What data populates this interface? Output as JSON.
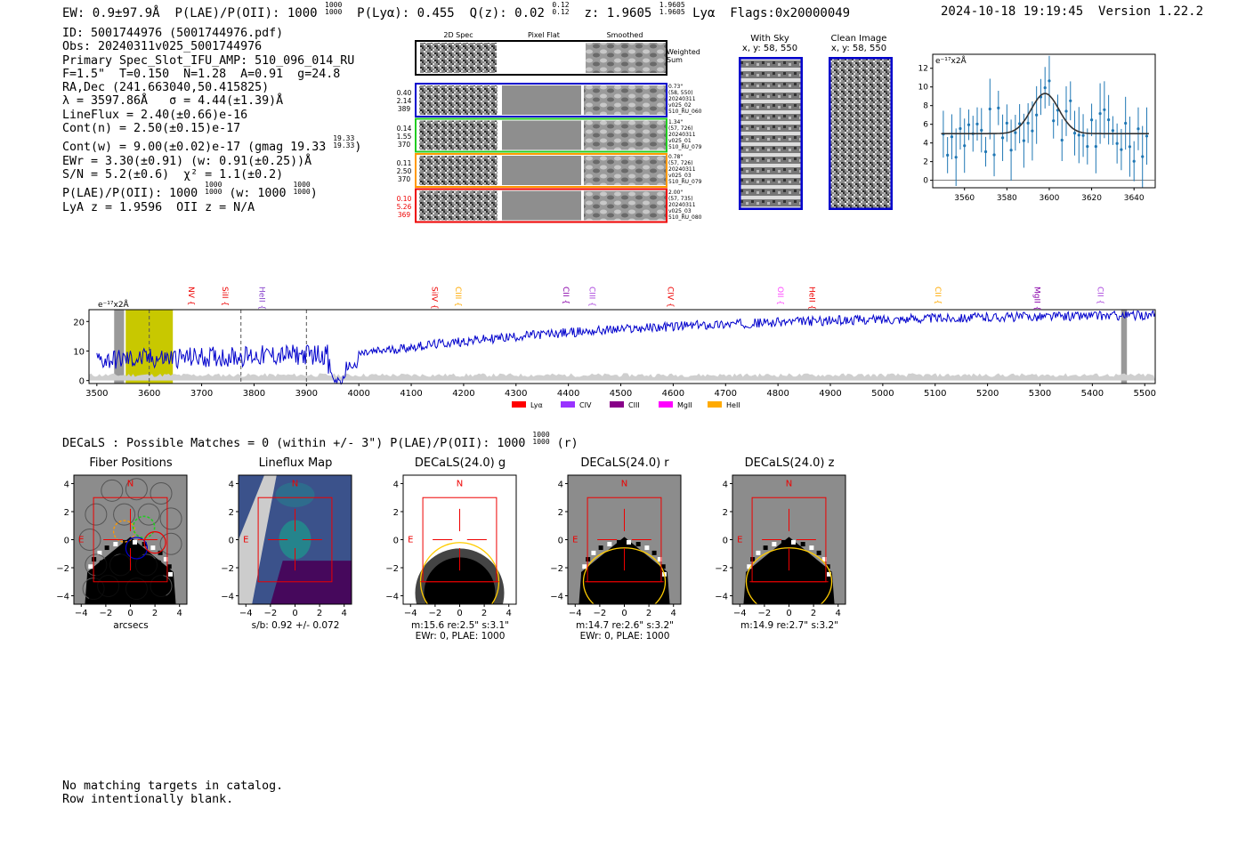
{
  "header": {
    "ew": "EW: 0.9±97.9Å",
    "plae_label": "P(LAE)/P(OII): 1000",
    "plae_hi": "1000",
    "plae_lo": "1000",
    "plya": "P(Lyα): 0.455",
    "qz_label": "Q(z): 0.02",
    "qz_hi": "0.12",
    "qz_lo": "0.12",
    "z_label": "z: 1.9605",
    "z_hi": "1.9605",
    "z_lo": "1.9605",
    "lya": "Lyα",
    "flags": "Flags:0x20000049",
    "datetime": "2024-10-18 19:19:45",
    "version": "Version 1.22.2"
  },
  "info": {
    "id": "ID: 5001744976 (5001744976.pdf)",
    "obs": "Obs: 20240311v025_5001744976",
    "primary": "Primary Spec_Slot_IFU_AMP: 510_096_014_RU",
    "params": "F=1.5\"  T=0.150  N=1.28  A=0.91  g=24.8",
    "radec": "RA,Dec (241.663040,50.415825)",
    "lambda": "λ = 3597.86Å   σ = 4.44(±1.39)Å",
    "lineflux": "LineFlux = 2.40(±0.66)e-16",
    "contn": "Cont(n) = 2.50(±0.15)e-17",
    "contw": "Cont(w) = 9.00(±0.02)e-17 (gmag 19.33",
    "contw_hi": "19.33",
    "contw_lo": "19.33",
    "contw_end": ")",
    "ewr": "EWr = 3.30(±0.91) (w: 0.91(±0.25))Å",
    "sn": "S/N = 5.2(±0.6)  χ² = 1.1(±0.2)",
    "plae": "P(LAE)/P(OII): 1000",
    "plae_hi": "1000",
    "plae_lo": "1000",
    "plae_w": "(w: 1000",
    "plae_w_hi": "1000",
    "plae_w_lo": "1000",
    "plae_w_end": ")",
    "lyaz": "LyA z = 1.9596  OII z = N/A"
  },
  "cutouts": {
    "col_2d": "2D Spec",
    "col_flat": "Pixel Flat",
    "col_smooth": "Smoothed",
    "weighted": "Weighted Sum",
    "rows": [
      {
        "l1": "0.40",
        "l2": "2.14",
        "l3": "389",
        "color": "#0000cc",
        "r1": "0.73\"",
        "r2": "(58, 550)",
        "r3": "20240311",
        "r4": "v025_02",
        "r5": "510_RU_060"
      },
      {
        "l1": "0.14",
        "l2": "1.55",
        "l3": "370",
        "color": "#22cc22",
        "r1": "1.34\"",
        "r2": "(57, 726)",
        "r3": "20240311",
        "r4": "v025_01",
        "r5": "510_RU_079"
      },
      {
        "l1": "0.11",
        "l2": "2.50",
        "l3": "370",
        "color": "#ff9900",
        "r1": "0.78\"",
        "r2": "(57, 726)",
        "r3": "20240311",
        "r4": "v025_03",
        "r5": "510_RU_079"
      },
      {
        "l1": "0.10",
        "l2": "5.26",
        "l3": "369",
        "color": "#ee0000",
        "r1": "2.00\"",
        "r2": "(57, 735)",
        "r3": "20240311",
        "r4": "v025_03",
        "r5": "510_RU_080"
      }
    ],
    "with_sky": "With Sky",
    "with_sky_xy": "x, y: 58, 550",
    "clean": "Clean Image",
    "clean_xy": "x, y: 58, 550"
  },
  "fit_plot": {
    "unit": "e⁻¹⁷x2Å",
    "x_ticks": [
      "3560",
      "3580",
      "3600",
      "3620",
      "3640"
    ],
    "y_ticks": [
      "0",
      "2",
      "4",
      "6",
      "8",
      "10",
      "12"
    ]
  },
  "spectrum": {
    "unit": "e⁻¹⁷x2Å",
    "x_ticks": [
      "3500",
      "3600",
      "3700",
      "3800",
      "3900",
      "4000",
      "4100",
      "4200",
      "4300",
      "4400",
      "4500",
      "4600",
      "4700",
      "4800",
      "4900",
      "5000",
      "5100",
      "5200",
      "5300",
      "5400",
      "5500"
    ],
    "y_ticks": [
      "0",
      "10",
      "20"
    ],
    "lines": [
      {
        "name": "NV",
        "wave": 3670,
        "color": "#ee0000"
      },
      {
        "name": "SiII",
        "wave": 3735,
        "color": "#ee0000"
      },
      {
        "name": "HeII",
        "wave": 3805,
        "color": "#8844cc"
      },
      {
        "name": "SiIV",
        "wave": 4135,
        "color": "#ee0000"
      },
      {
        "name": "CIII",
        "wave": 4180,
        "color": "#ffaa00"
      },
      {
        "name": "CII",
        "wave": 4385,
        "color": "#8800aa"
      },
      {
        "name": "CIII",
        "wave": 4435,
        "color": "#aa44dd"
      },
      {
        "name": "CIV",
        "wave": 4585,
        "color": "#ee0000"
      },
      {
        "name": "OII",
        "wave": 4795,
        "color": "#ff44ff"
      },
      {
        "name": "HeII",
        "wave": 4855,
        "color": "#ee0000"
      },
      {
        "name": "CII",
        "wave": 5095,
        "color": "#ffaa00"
      },
      {
        "name": "MgII",
        "wave": 5285,
        "color": "#8800aa"
      },
      {
        "name": "CII",
        "wave": 5405,
        "color": "#aa44dd"
      }
    ],
    "legend": [
      {
        "name": "Lyα",
        "color": "#ff0000"
      },
      {
        "name": "CIV",
        "color": "#9933ff"
      },
      {
        "name": "CIII",
        "color": "#880088"
      },
      {
        "name": "MgII",
        "color": "#ff00ff"
      },
      {
        "name": "HeII",
        "color": "#ffaa00"
      }
    ]
  },
  "decals": {
    "line": "DECaLS : Possible Matches = 0 (within +/- 3\")  P(LAE)/P(OII): 1000",
    "line_hi": "1000",
    "line_lo": "1000",
    "line_end": "(r)",
    "panels": [
      {
        "title": "Fiber Positions",
        "cap1": "arcsecs",
        "cap2": ""
      },
      {
        "title": "Lineflux Map",
        "cap1": "s/b: 0.92 +/- 0.072",
        "cap2": ""
      },
      {
        "title": "DECaLS(24.0) g",
        "cap1": "m:15.6  re:2.5\"  s:3.1\"",
        "cap2": "EWr: 0, PLAE: 1000"
      },
      {
        "title": "DECaLS(24.0) r",
        "cap1": "m:14.7  re:2.6\"  s:3.2\"",
        "cap2": "EWr: 0, PLAE: 1000"
      },
      {
        "title": "DECaLS(24.0) z",
        "cap1": "m:14.9  re:2.7\"  s:3.2\"",
        "cap2": ""
      }
    ],
    "ticks": [
      "−4",
      "−2",
      "0",
      "2",
      "4"
    ],
    "n_label": "N",
    "e_label": "E"
  },
  "footer": {
    "line1": "No matching targets in catalog.",
    "line2": "Row intentionally blank."
  }
}
